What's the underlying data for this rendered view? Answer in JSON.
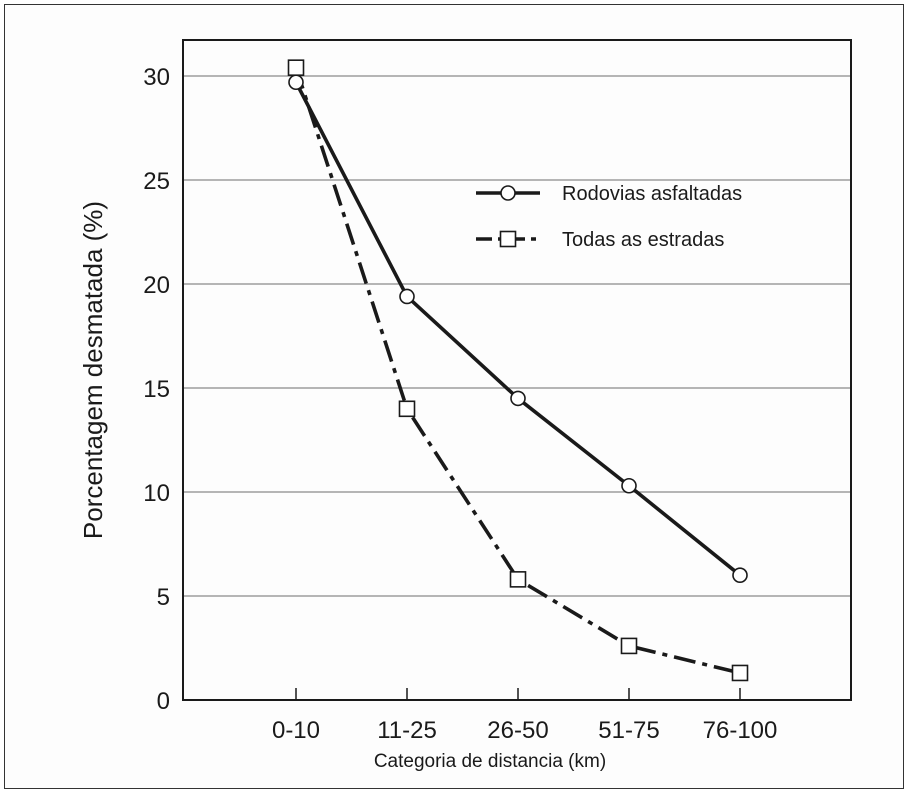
{
  "chart_data": {
    "type": "line",
    "title": "",
    "xlabel": "Categoria de distancia (km)",
    "ylabel": "Porcentagem desmatada (%)",
    "categories": [
      "0-10",
      "11-25",
      "26-50",
      "51-75",
      "76-100"
    ],
    "ylim": [
      0,
      32
    ],
    "yticks": [
      0,
      5,
      10,
      15,
      20,
      25,
      30
    ],
    "grid": "horizontal",
    "legend_position": "upper-right",
    "series": [
      {
        "name": "Rodovias asfaltadas",
        "values": [
          29.7,
          19.4,
          14.5,
          10.3,
          6.0
        ],
        "marker": "circle",
        "line_style": "solid",
        "color": "#1a1a1a"
      },
      {
        "name": "Todas as estradas",
        "values": [
          30.4,
          14.0,
          5.8,
          2.6,
          1.3
        ],
        "marker": "square",
        "line_style": "dash-dot",
        "color": "#1a1a1a"
      }
    ]
  }
}
